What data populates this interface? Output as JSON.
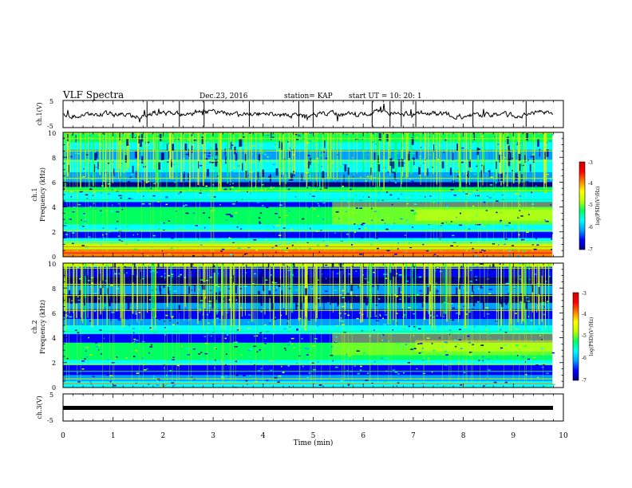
{
  "header": {
    "title": "VLF Spectra",
    "date": "Dec.23, 2016",
    "station": "station= KAP",
    "start": "start  UT =   10: 20: 1"
  },
  "chart_data": [
    {
      "type": "line",
      "ylabel": "ch.1(V)",
      "ylim": [
        -5,
        5
      ],
      "ytick_labels": [
        "5",
        "-5"
      ],
      "xlim": [
        0,
        10
      ]
    },
    {
      "type": "heatmap",
      "ylabel_line1": "ch.1",
      "ylabel_line2": "Frequency  (kHz)",
      "ylim": [
        0,
        10
      ],
      "ytick_labels": [
        "10",
        "8",
        "6",
        "4",
        "2",
        "0"
      ],
      "colorbar": {
        "label": "log(PSD)(V²/Hz)",
        "ticks": [
          "-3",
          "-4",
          "-5",
          "-6",
          "-7"
        ],
        "range": [
          -7,
          -3
        ],
        "colors": [
          "#000080",
          "#0000ff",
          "#00a0ff",
          "#00ffff",
          "#00ff60",
          "#c0ff00",
          "#ffff00",
          "#ff8000",
          "#ff0000",
          "#d00000"
        ]
      }
    },
    {
      "type": "heatmap",
      "ylabel_line1": "ch.2",
      "ylabel_line2": "Frequency  (kHz)",
      "ylim": [
        0,
        10
      ],
      "ytick_labels": [
        "10",
        "8",
        "6",
        "4",
        "2",
        "0"
      ],
      "colorbar": {
        "label": "log(PSD)(V²/Hz)",
        "ticks": [
          "-3",
          "-4",
          "-5",
          "-6",
          "-7"
        ],
        "range": [
          -7,
          -3
        ],
        "colors": [
          "#000080",
          "#0000ff",
          "#00a0ff",
          "#00ffff",
          "#00ff60",
          "#c0ff00",
          "#ffff00",
          "#ff8000",
          "#ff0000",
          "#d00000"
        ]
      }
    },
    {
      "type": "line",
      "ylabel": "ch.3(V)",
      "ylim": [
        -5,
        5
      ],
      "ytick_labels": [
        "5",
        "-5"
      ],
      "xlim": [
        0,
        10
      ],
      "xlabel": "Time  (min)",
      "xtick_labels": [
        "0",
        "1",
        "2",
        "3",
        "4",
        "5",
        "6",
        "7",
        "8",
        "9",
        "10"
      ]
    }
  ]
}
